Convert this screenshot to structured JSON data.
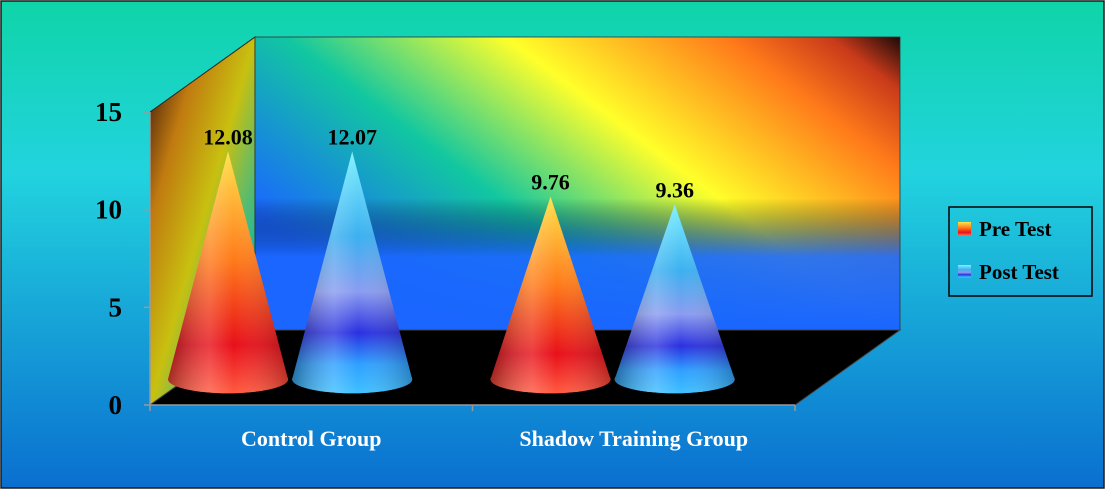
{
  "colors": {
    "background_top": "#0fd4a8",
    "background_mid": "#22d3de",
    "background_bottom": "#0a6fd0",
    "pre_light": "#ffe24a",
    "pre_mid": "#ff7a1a",
    "pre_dark": "#e8101a",
    "post_light": "#7ff0ff",
    "post_mid": "#8a9cf0",
    "post_dark": "#2a30e0",
    "floor": "#000000"
  },
  "chart_data": {
    "type": "bar",
    "style": "3d-cone",
    "title": "",
    "xlabel": "",
    "ylabel": "",
    "categories": [
      "Control Group",
      "Shadow Training Group"
    ],
    "series": [
      {
        "name": "Pre Test",
        "values": [
          12.08,
          9.76
        ],
        "labels": [
          "12.08",
          "9.76"
        ]
      },
      {
        "name": "Post Test",
        "values": [
          12.07,
          9.36
        ],
        "labels": [
          "12.07",
          "9.36"
        ]
      }
    ],
    "y_ticks": [
      "0",
      "5",
      "10",
      "15"
    ],
    "ylim": [
      0,
      15
    ],
    "grid": false,
    "legend": "right",
    "legend_items": [
      "Pre Test",
      "Post Test"
    ]
  }
}
